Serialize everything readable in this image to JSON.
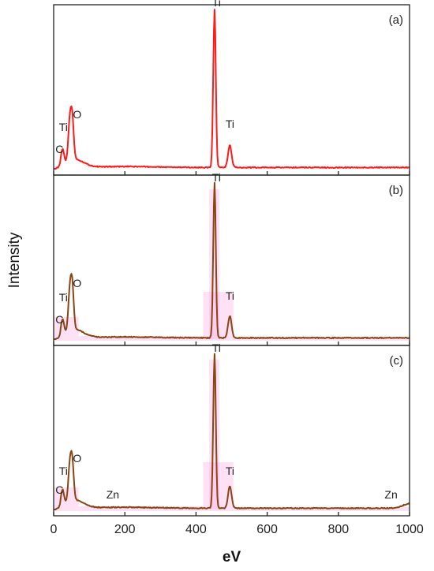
{
  "chart_data": {
    "type": "line",
    "xlabel": "eV",
    "ylabel": "Intensity",
    "xlim": [
      0,
      1000
    ],
    "xticks": [
      0,
      200,
      400,
      600,
      800,
      1000
    ],
    "xtick_labels": [
      "0",
      "200",
      "400",
      "600",
      "800",
      "1000"
    ],
    "ylim": [
      0,
      1
    ],
    "grid": false,
    "panels": [
      {
        "id": "(a)",
        "line_color": "#ff1a1a",
        "shading": false,
        "peaks": [
          {
            "element": "C",
            "x": 25,
            "height": 0.1
          },
          {
            "element": "Ti",
            "x": 45,
            "height": 0.22
          },
          {
            "element": "O",
            "x": 52,
            "height": 0.26
          },
          {
            "element": "Ti",
            "x": 452,
            "height": 1.0
          },
          {
            "element": "Ti",
            "x": 495,
            "height": 0.14
          }
        ],
        "labels": [
          {
            "text": "C",
            "x": 5,
            "y": 0.1
          },
          {
            "text": "Ti",
            "x": 15,
            "y": 0.24
          },
          {
            "text": "O",
            "x": 54,
            "y": 0.32
          },
          {
            "text": "Ti",
            "x": 445,
            "y": 1.03
          },
          {
            "text": "Ti",
            "x": 483,
            "y": 0.26
          }
        ]
      },
      {
        "id": "(b)",
        "line_color": "#8b4513",
        "shading": true,
        "peaks": [
          {
            "element": "C",
            "x": 25,
            "height": 0.1
          },
          {
            "element": "Ti",
            "x": 45,
            "height": 0.22
          },
          {
            "element": "O",
            "x": 52,
            "height": 0.28
          },
          {
            "element": "Ti",
            "x": 452,
            "height": 0.98
          },
          {
            "element": "Ti",
            "x": 495,
            "height": 0.14
          }
        ],
        "labels": [
          {
            "text": "C",
            "x": 5,
            "y": 0.1
          },
          {
            "text": "Ti",
            "x": 15,
            "y": 0.24
          },
          {
            "text": "O",
            "x": 54,
            "y": 0.33
          },
          {
            "text": "Ti",
            "x": 445,
            "y": 1.0
          },
          {
            "text": "Ti",
            "x": 483,
            "y": 0.25
          }
        ]
      },
      {
        "id": "(c)",
        "line_color": "#8b4513",
        "shading": true,
        "peaks": [
          {
            "element": "C",
            "x": 25,
            "height": 0.1
          },
          {
            "element": "Ti",
            "x": 45,
            "height": 0.2
          },
          {
            "element": "O",
            "x": 52,
            "height": 0.24
          },
          {
            "element": "Ti",
            "x": 452,
            "height": 0.98
          },
          {
            "element": "Ti",
            "x": 495,
            "height": 0.14
          },
          {
            "element": "Zn",
            "x": 1000,
            "height": 0.03
          }
        ],
        "labels": [
          {
            "text": "C",
            "x": 5,
            "y": 0.1
          },
          {
            "text": "Ti",
            "x": 15,
            "y": 0.22
          },
          {
            "text": "O",
            "x": 54,
            "y": 0.3
          },
          {
            "text": "Zn",
            "x": 148,
            "y": 0.07
          },
          {
            "text": "Ti",
            "x": 445,
            "y": 1.0
          },
          {
            "text": "Ti",
            "x": 483,
            "y": 0.22
          },
          {
            "text": "Zn",
            "x": 930,
            "y": 0.07
          }
        ]
      }
    ]
  }
}
